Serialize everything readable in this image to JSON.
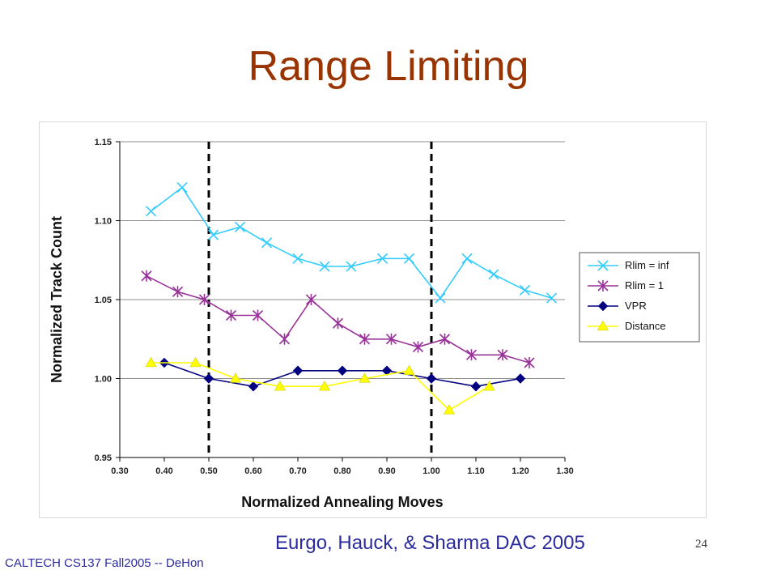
{
  "slide": {
    "title": "Range Limiting",
    "citation": "Eurgo, Hauck, & Sharma DAC 2005",
    "page_number": "24",
    "footer": "CALTECH CS137 Fall2005 -- DeHon"
  },
  "chart_data": {
    "type": "line",
    "xlabel": "Normalized Annealing Moves",
    "ylabel": "Normalized Track Count",
    "xlim": [
      0.3,
      1.3
    ],
    "ylim": [
      0.95,
      1.15
    ],
    "xticks": [
      "0.30",
      "0.40",
      "0.50",
      "0.60",
      "0.70",
      "0.80",
      "0.90",
      "1.00",
      "1.10",
      "1.20",
      "1.30"
    ],
    "yticks": [
      "0.95",
      "1.00",
      "1.05",
      "1.10",
      "1.15"
    ],
    "grid": "horizontal",
    "legend_position": "right",
    "vertical_reference_lines": [
      0.5,
      1.0
    ],
    "series": [
      {
        "name": "Rlim = inf",
        "marker": "x",
        "color": "#33ccff",
        "x": [
          0.37,
          0.44,
          0.51,
          0.57,
          0.63,
          0.7,
          0.76,
          0.82,
          0.89,
          0.95,
          1.02,
          1.08,
          1.14,
          1.21,
          1.27
        ],
        "y": [
          1.106,
          1.121,
          1.091,
          1.096,
          1.086,
          1.076,
          1.071,
          1.071,
          1.076,
          1.076,
          1.051,
          1.076,
          1.066,
          1.056,
          1.051
        ]
      },
      {
        "name": "Rlim = 1",
        "marker": "star",
        "color": "#993399",
        "x": [
          0.36,
          0.43,
          0.49,
          0.55,
          0.61,
          0.67,
          0.73,
          0.79,
          0.85,
          0.91,
          0.97,
          1.03,
          1.09,
          1.16,
          1.22
        ],
        "y": [
          1.065,
          1.055,
          1.05,
          1.04,
          1.04,
          1.025,
          1.05,
          1.035,
          1.025,
          1.025,
          1.02,
          1.025,
          1.015,
          1.015,
          1.01
        ]
      },
      {
        "name": "VPR",
        "marker": "diamond",
        "color": "#000080",
        "x": [
          0.4,
          0.5,
          0.6,
          0.7,
          0.8,
          0.9,
          1.0,
          1.1,
          1.2
        ],
        "y": [
          1.01,
          1.0,
          0.995,
          1.005,
          1.005,
          1.005,
          1.0,
          0.995,
          1.0
        ]
      },
      {
        "name": "Distance",
        "marker": "triangle",
        "color": "#ffff00",
        "x": [
          0.37,
          0.47,
          0.56,
          0.66,
          0.76,
          0.85,
          0.95,
          1.04,
          1.13
        ],
        "y": [
          1.01,
          1.01,
          1.0,
          0.995,
          0.995,
          1.0,
          1.005,
          0.98,
          0.995
        ]
      }
    ]
  }
}
